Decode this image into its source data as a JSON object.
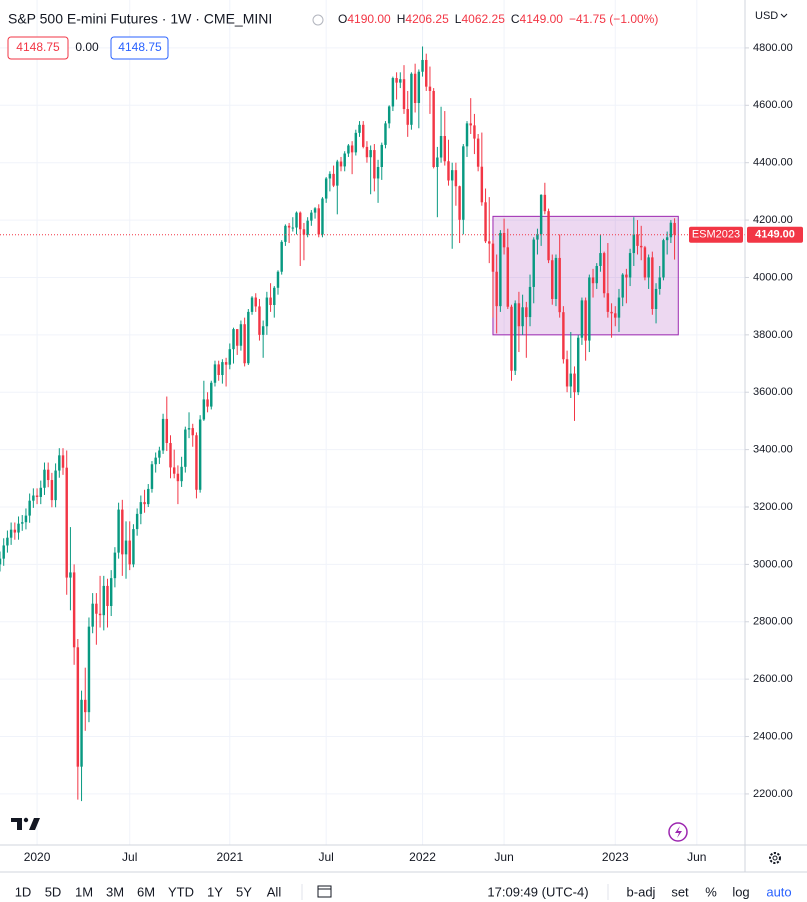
{
  "header": {
    "symbol": "S&P 500 E-mini Futures · 1W · CME_MINI",
    "ohlc": [
      {
        "label": "O",
        "value": "4190.00"
      },
      {
        "label": "H",
        "value": "4206.25"
      },
      {
        "label": "L",
        "value": "4062.25"
      },
      {
        "label": "C",
        "value": "4149.00"
      }
    ],
    "change": "−41.75 (−1.00%)",
    "boxes": [
      "4148.75",
      "0.00",
      "4148.75"
    ]
  },
  "currency": "USD",
  "chart_data": {
    "type": "candlestick",
    "grid": true,
    "up_color": "#089981",
    "down_color": "#f23645",
    "categories": [
      null,
      null,
      null,
      null,
      null,
      null,
      null,
      null,
      null,
      null,
      "2020",
      null,
      null,
      null,
      null,
      null,
      null,
      null,
      null,
      null,
      null,
      null,
      null,
      null,
      null,
      null,
      null,
      null,
      null,
      null,
      null,
      null,
      null,
      null,
      null,
      "Jul",
      null,
      null,
      null,
      null,
      null,
      null,
      null,
      null,
      null,
      null,
      null,
      null,
      null,
      null,
      null,
      null,
      null,
      null,
      null,
      null,
      null,
      null,
      null,
      null,
      null,
      null,
      "2021",
      null,
      null,
      null,
      null,
      null,
      null,
      null,
      null,
      null,
      null,
      null,
      null,
      null,
      null,
      null,
      null,
      null,
      null,
      null,
      null,
      null,
      null,
      null,
      null,
      null,
      "Jul",
      null,
      null,
      null,
      null,
      null,
      null,
      null,
      null,
      null,
      null,
      null,
      null,
      null,
      null,
      null,
      null,
      null,
      null,
      null,
      null,
      null,
      null,
      null,
      null,
      null,
      "2022",
      null,
      null,
      null,
      null,
      null,
      null,
      null,
      null,
      null,
      null,
      null,
      null,
      null,
      null,
      null,
      null,
      null,
      null,
      null,
      null,
      null,
      "Jun",
      null,
      null,
      null,
      null,
      null,
      null,
      null,
      null,
      null,
      null,
      null,
      null,
      null,
      null,
      null,
      null,
      null,
      null,
      null,
      null,
      null,
      null,
      null,
      null,
      null,
      null,
      null,
      null,
      null,
      "2023",
      null,
      null,
      null,
      null,
      null,
      null,
      null,
      null,
      null,
      null,
      null,
      null,
      null,
      null,
      null,
      null,
      null,
      null,
      null,
      null,
      null,
      "Jun",
      null,
      null,
      null,
      null,
      null,
      null,
      null,
      null,
      null,
      null,
      null,
      null
    ],
    "open": [
      3000,
      3020,
      3066,
      3093,
      3121,
      3111,
      3142,
      3147,
      3170,
      3222,
      3240,
      3235,
      3267,
      3330,
      3294,
      3224,
      3327,
      3380,
      3337,
      2954,
      2972,
      2711,
      2295,
      2528,
      2485,
      2783,
      2863,
      2828,
      2823,
      2925,
      2855,
      2952,
      3041,
      3191,
      3035,
      3083,
      3000,
      3123,
      3176,
      3217,
      3210,
      3263,
      3349,
      3372,
      3397,
      3507,
      3423,
      3338,
      3316,
      3290,
      3340,
      3470,
      3475,
      3450,
      3260,
      3505,
      3575,
      3550,
      3633,
      3697,
      3660,
      3705,
      3696,
      3750,
      3820,
      3762,
      3837,
      3701,
      3880,
      3930,
      3899,
      3800,
      3830,
      3930,
      3904,
      3964,
      4020,
      4124,
      4180,
      4174,
      4174,
      4226,
      4168,
      4149,
      4198,
      4226,
      4241,
      4150,
      4275,
      4345,
      4361,
      4320,
      4404,
      4387,
      4432,
      4460,
      4436,
      4504,
      4532,
      4455,
      4419,
      4444,
      4345,
      4385,
      4462,
      4537,
      4596,
      4695,
      4679,
      4691,
      4587,
      4532,
      4710,
      4608,
      4717,
      4758,
      4665,
      4650,
      4385,
      4418,
      4493,
      4405,
      4338,
      4374,
      4318,
      4201,
      4457,
      4537,
      4530,
      4484,
      4386,
      4262,
      4126,
      4118,
      4020,
      3900,
      4155,
      4105,
      3898,
      3675,
      3910,
      3830,
      3896,
      3862,
      3967,
      4132,
      4151,
      4288,
      4231,
      4060,
      3925,
      4068,
      3879,
      3715,
      3620,
      3665,
      3600,
      3790,
      3920,
      3780,
      4000,
      3980,
      4040,
      4085,
      3945,
      3880,
      3875,
      3860,
      3930,
      4010,
      4000,
      4085,
      4150,
      4110,
      4105,
      4000,
      4070,
      3890,
      3960,
      4000,
      4130,
      4140,
      4190,
      null,
      null,
      null,
      null,
      null,
      null,
      null,
      null,
      null,
      null,
      null,
      null,
      null,
      null,
      null,
      null,
      null,
      null
    ],
    "high": [
      3045,
      3091,
      3118,
      3146,
      3146,
      3167,
      3172,
      3195,
      3247,
      3265,
      3265,
      3292,
      3355,
      3355,
      3319,
      3352,
      3405,
      3405,
      3397,
      3130,
      3000,
      2740,
      2560,
      2640,
      2815,
      2900,
      2900,
      2960,
      2960,
      2950,
      2980,
      3060,
      3215,
      3225,
      3150,
      3150,
      3140,
      3195,
      3240,
      3260,
      3280,
      3360,
      3390,
      3410,
      3525,
      3585,
      3450,
      3400,
      3345,
      3375,
      3480,
      3530,
      3490,
      3460,
      3520,
      3640,
      3600,
      3640,
      3710,
      3710,
      3715,
      3720,
      3770,
      3825,
      3820,
      3850,
      3860,
      3890,
      3935,
      3945,
      3925,
      3850,
      3950,
      3980,
      3970,
      4025,
      4130,
      4185,
      4190,
      4210,
      4230,
      4230,
      4190,
      4210,
      4235,
      4245,
      4255,
      4280,
      4350,
      4370,
      4390,
      4410,
      4420,
      4440,
      4465,
      4475,
      4515,
      4545,
      4545,
      4475,
      4460,
      4465,
      4410,
      4470,
      4545,
      4600,
      4700,
      4715,
      4715,
      4740,
      4650,
      4715,
      4745,
      4725,
      4805,
      4780,
      4735,
      4660,
      4455,
      4595,
      4580,
      4480,
      4400,
      4400,
      4320,
      4465,
      4545,
      4625,
      4570,
      4500,
      4505,
      4310,
      4280,
      4130,
      4080,
      4165,
      4205,
      4170,
      3905,
      3920,
      3950,
      3940,
      3915,
      4010,
      4140,
      4170,
      4290,
      4330,
      4240,
      4080,
      4080,
      4150,
      3900,
      3745,
      3810,
      3690,
      3800,
      3930,
      3930,
      4010,
      4030,
      4050,
      4150,
      4090,
      4120,
      3910,
      3900,
      3960,
      4015,
      4030,
      4100,
      4210,
      4200,
      4180,
      4110,
      4080,
      4090,
      3980,
      4040,
      4135,
      4160,
      4200,
      4206.25,
      null,
      null,
      null,
      null,
      null,
      null,
      null,
      null,
      null,
      null,
      null,
      null,
      null,
      null,
      null,
      null,
      null,
      null
    ],
    "low": [
      2975,
      2995,
      3041,
      3068,
      3086,
      3086,
      3117,
      3122,
      3145,
      3197,
      3210,
      3210,
      3242,
      3269,
      3199,
      3199,
      3302,
      3312,
      2894,
      2840,
      2650,
      2180,
      2175,
      2420,
      2450,
      2760,
      2720,
      2780,
      2770,
      2780,
      2820,
      2920,
      3020,
      2960,
      2950,
      2980,
      2990,
      3100,
      3140,
      3180,
      3200,
      3250,
      3320,
      3350,
      3385,
      3395,
      3300,
      3300,
      3210,
      3270,
      3320,
      3440,
      3410,
      3230,
      3250,
      3500,
      3530,
      3540,
      3620,
      3640,
      3630,
      3620,
      3680,
      3700,
      3730,
      3745,
      3690,
      3695,
      3870,
      3880,
      3780,
      3720,
      3800,
      3880,
      3860,
      3940,
      4010,
      4110,
      4120,
      4160,
      4150,
      4040,
      4060,
      4140,
      4180,
      4205,
      4140,
      4140,
      4260,
      4300,
      4315,
      4220,
      4370,
      4370,
      4420,
      4360,
      4425,
      4490,
      4450,
      4400,
      4290,
      4300,
      4260,
      4340,
      4450,
      4520,
      4580,
      4620,
      4660,
      4570,
      4490,
      4515,
      4575,
      4520,
      4700,
      4650,
      4570,
      4380,
      4210,
      4400,
      4390,
      4320,
      4100,
      4250,
      4120,
      4150,
      4420,
      4500,
      4430,
      4370,
      4250,
      4120,
      4050,
      3860,
      3805,
      3880,
      4080,
      3890,
      3640,
      3660,
      3740,
      3800,
      3720,
      3830,
      3910,
      4080,
      4110,
      4220,
      4050,
      3905,
      3900,
      3860,
      3700,
      3600,
      3580,
      3500,
      3590,
      3765,
      3710,
      3740,
      3930,
      3960,
      4020,
      3930,
      3860,
      3790,
      3830,
      3810,
      3900,
      3910,
      3970,
      4040,
      4080,
      4060,
      3990,
      3960,
      3870,
      3840,
      3940,
      3990,
      4080,
      4120,
      4062.25,
      null,
      null,
      null,
      null,
      null,
      null,
      null,
      null,
      null,
      null,
      null,
      null,
      null,
      null,
      null,
      null,
      null,
      null
    ],
    "close": [
      3020,
      3066,
      3093,
      3121,
      3111,
      3142,
      3147,
      3170,
      3222,
      3240,
      3235,
      3267,
      3330,
      3294,
      3224,
      3327,
      3380,
      3337,
      2954,
      2972,
      2711,
      2295,
      2528,
      2485,
      2783,
      2863,
      2828,
      2823,
      2925,
      2855,
      2952,
      3041,
      3191,
      3035,
      3083,
      3000,
      3123,
      3176,
      3217,
      3210,
      3263,
      3349,
      3372,
      3397,
      3507,
      3423,
      3338,
      3316,
      3290,
      3340,
      3470,
      3475,
      3450,
      3260,
      3505,
      3575,
      3550,
      3633,
      3697,
      3660,
      3705,
      3696,
      3750,
      3820,
      3762,
      3837,
      3701,
      3880,
      3930,
      3899,
      3800,
      3830,
      3930,
      3904,
      3964,
      4020,
      4124,
      4180,
      4174,
      4174,
      4226,
      4168,
      4149,
      4198,
      4226,
      4241,
      4150,
      4275,
      4345,
      4361,
      4320,
      4404,
      4387,
      4432,
      4460,
      4436,
      4504,
      4532,
      4455,
      4419,
      4444,
      4345,
      4385,
      4462,
      4537,
      4596,
      4695,
      4679,
      4691,
      4587,
      4532,
      4710,
      4608,
      4717,
      4758,
      4665,
      4650,
      4385,
      4418,
      4493,
      4405,
      4338,
      4374,
      4318,
      4201,
      4457,
      4537,
      4530,
      4484,
      4386,
      4262,
      4126,
      4118,
      4020,
      3900,
      4155,
      4105,
      3898,
      3675,
      3910,
      3830,
      3896,
      3862,
      3967,
      4132,
      4151,
      4288,
      4231,
      4060,
      3925,
      4068,
      3879,
      3715,
      3620,
      3665,
      3600,
      3790,
      3920,
      3780,
      4000,
      3980,
      4040,
      4085,
      3945,
      3880,
      3875,
      3860,
      3930,
      4010,
      4000,
      4085,
      4150,
      4110,
      4105,
      4000,
      4070,
      3890,
      3960,
      4000,
      4130,
      4140,
      4190.75,
      4149,
      null,
      null,
      null,
      null,
      null,
      null,
      null,
      null,
      null,
      null,
      null,
      null,
      null,
      null,
      null,
      null,
      null,
      null
    ],
    "ylim": [
      2022,
      4967
    ],
    "yticks": [
      {
        "value": 2200,
        "label": "2200.00"
      },
      {
        "value": 2400,
        "label": "2400.00"
      },
      {
        "value": 2600,
        "label": "2600.00"
      },
      {
        "value": 2800,
        "label": "2800.00"
      },
      {
        "value": 3000,
        "label": "3000.00"
      },
      {
        "value": 3200,
        "label": "3200.00"
      },
      {
        "value": 3400,
        "label": "3400.00"
      },
      {
        "value": 3600,
        "label": "3600.00"
      },
      {
        "value": 3800,
        "label": "3800.00"
      },
      {
        "value": 4000,
        "label": "4000.00"
      },
      {
        "value": 4200,
        "label": "4200.00"
      },
      {
        "value": 4400,
        "label": "4400.00"
      },
      {
        "value": 4600,
        "label": "4600.00"
      },
      {
        "value": 4800,
        "label": "4800.00"
      }
    ],
    "rectangle": {
      "top": 4213,
      "bottom": 3800,
      "start": 133,
      "end": 183,
      "color": "#9c27b0"
    },
    "last_price": {
      "name": "ESM2023",
      "value": 4149,
      "label": "4149.00",
      "color": "#f23645"
    }
  },
  "toolbar": {
    "ranges": [
      "1D",
      "5D",
      "1M",
      "3M",
      "6M",
      "YTD",
      "1Y",
      "5Y",
      "All"
    ],
    "time": "17:09:49 (UTC-4)",
    "options": [
      "b-adj",
      "set",
      "%",
      "log",
      "auto"
    ]
  }
}
